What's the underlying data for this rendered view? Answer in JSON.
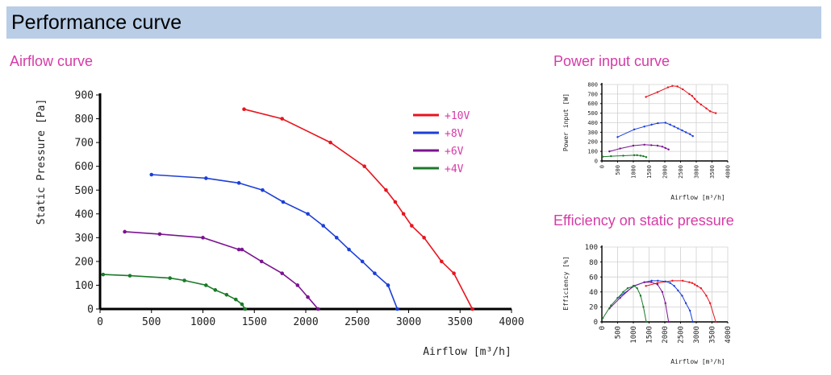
{
  "header": {
    "title": "Performance curve"
  },
  "sections": {
    "airflow": "Airflow curve",
    "power": "Power input curve",
    "efficiency": "Efficiency on static pressure"
  },
  "colors": {
    "red": "#e8141e",
    "blue": "#1c3fd8",
    "purple": "#7a1590",
    "green": "#1a7a28",
    "title_pink": "#d63ba6"
  },
  "chart_data": [
    {
      "type": "line",
      "xlabel": "Airflow [m³/h]",
      "ylabel": "Static Pressure [Pa]",
      "xlim": [
        0,
        4000
      ],
      "ylim": [
        0,
        900
      ],
      "xticks": [
        "0",
        "500",
        "1000",
        "1500",
        "2000",
        "2500",
        "3000",
        "3500",
        "4000"
      ],
      "yticks": [
        "0",
        "100",
        "200",
        "300",
        "400",
        "500",
        "600",
        "700",
        "800",
        "900"
      ],
      "legend_position": "top-right",
      "series": [
        {
          "name": "+10V",
          "color": "#e8141e",
          "x": [
            1400,
            1770,
            2240,
            2570,
            2780,
            2870,
            2950,
            3030,
            3150,
            3320,
            3440,
            3620
          ],
          "y": [
            840,
            800,
            700,
            600,
            500,
            450,
            400,
            350,
            300,
            200,
            150,
            0
          ]
        },
        {
          "name": "+8V",
          "color": "#1c3fd8",
          "x": [
            500,
            1030,
            1350,
            1580,
            1780,
            2020,
            2170,
            2300,
            2420,
            2550,
            2670,
            2800,
            2890
          ],
          "y": [
            565,
            550,
            530,
            500,
            450,
            400,
            350,
            300,
            250,
            200,
            150,
            100,
            0
          ]
        },
        {
          "name": "+6V",
          "color": "#7a1590",
          "x": [
            240,
            580,
            1000,
            1350,
            1380,
            1570,
            1770,
            1920,
            2020,
            2120
          ],
          "y": [
            325,
            315,
            300,
            250,
            250,
            200,
            150,
            100,
            50,
            0
          ]
        },
        {
          "name": "+4V",
          "color": "#1a7a28",
          "x": [
            30,
            290,
            680,
            820,
            1030,
            1120,
            1230,
            1320,
            1380,
            1410
          ],
          "y": [
            145,
            140,
            130,
            120,
            100,
            80,
            60,
            40,
            20,
            0
          ]
        }
      ]
    },
    {
      "type": "line",
      "xlabel": "Airflow [m³/h]",
      "ylabel": "Power input [W]",
      "xlim": [
        0,
        4000
      ],
      "ylim": [
        0,
        800
      ],
      "xticks": [
        "0",
        "500",
        "1000",
        "1500",
        "2000",
        "2500",
        "3000",
        "3500",
        "4000"
      ],
      "yticks": [
        "0",
        "100",
        "200",
        "300",
        "400",
        "500",
        "600",
        "700",
        "800"
      ],
      "series": [
        {
          "name": "+10V",
          "color": "#e8141e",
          "x": [
            1400,
            1770,
            2100,
            2240,
            2400,
            2570,
            2780,
            2870,
            2950,
            3030,
            3150,
            3320,
            3440,
            3620
          ],
          "y": [
            670,
            720,
            770,
            785,
            780,
            750,
            700,
            680,
            650,
            620,
            590,
            550,
            520,
            500
          ]
        },
        {
          "name": "+8V",
          "color": "#1c3fd8",
          "x": [
            500,
            1030,
            1350,
            1580,
            1780,
            2020,
            2170,
            2300,
            2420,
            2550,
            2670,
            2800,
            2890
          ],
          "y": [
            250,
            330,
            360,
            380,
            395,
            400,
            380,
            360,
            340,
            320,
            300,
            280,
            260
          ]
        },
        {
          "name": "+6V",
          "color": "#7a1590",
          "x": [
            240,
            580,
            1000,
            1350,
            1570,
            1770,
            1920,
            2020,
            2120
          ],
          "y": [
            100,
            130,
            160,
            170,
            165,
            160,
            150,
            135,
            120
          ]
        },
        {
          "name": "+4V",
          "color": "#1a7a28",
          "x": [
            30,
            290,
            680,
            1030,
            1120,
            1230,
            1320,
            1410
          ],
          "y": [
            45,
            50,
            55,
            60,
            60,
            55,
            50,
            40
          ]
        }
      ]
    },
    {
      "type": "line",
      "xlabel": "Airflow [m³/h]",
      "ylabel": "Efficiency [%]",
      "xlim": [
        0,
        4000
      ],
      "ylim": [
        0,
        100
      ],
      "xticks": [
        "0",
        "500",
        "1000",
        "1500",
        "2000",
        "2500",
        "3000",
        "3500",
        "4000"
      ],
      "yticks": [
        "0",
        "20",
        "40",
        "60",
        "80",
        "100"
      ],
      "series": [
        {
          "name": "+10V",
          "color": "#e8141e",
          "x": [
            1400,
            1770,
            2240,
            2570,
            2780,
            2870,
            2950,
            3030,
            3150,
            3320,
            3440,
            3620
          ],
          "y": [
            48,
            52,
            55,
            55,
            53,
            52,
            50,
            48,
            45,
            35,
            25,
            0
          ]
        },
        {
          "name": "+8V",
          "color": "#1c3fd8",
          "x": [
            500,
            1030,
            1350,
            1580,
            1780,
            2020,
            2170,
            2300,
            2420,
            2550,
            2670,
            2800,
            2890
          ],
          "y": [
            32,
            48,
            53,
            55,
            55,
            54,
            52,
            48,
            42,
            35,
            25,
            15,
            0
          ]
        },
        {
          "name": "+6V",
          "color": "#7a1590",
          "x": [
            240,
            580,
            1000,
            1350,
            1570,
            1770,
            1920,
            2020,
            2120
          ],
          "y": [
            18,
            32,
            48,
            53,
            53,
            50,
            40,
            25,
            0
          ]
        },
        {
          "name": "+4V",
          "color": "#1a7a28",
          "x": [
            30,
            290,
            680,
            820,
            1030,
            1120,
            1230,
            1320,
            1410
          ],
          "y": [
            5,
            22,
            40,
            45,
            48,
            45,
            35,
            20,
            0
          ]
        }
      ]
    }
  ]
}
